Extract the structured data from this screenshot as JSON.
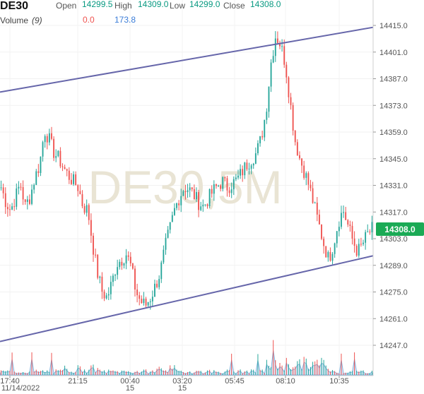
{
  "header": {
    "symbol": "DE30",
    "open_label": "Open",
    "open_value": "14299.5",
    "high_label": "High",
    "high_value": "14309.0",
    "low_label": "Low",
    "low_value": "14299.0",
    "close_label": "Close",
    "close_value": "14308.0",
    "volume_label": "Volume",
    "volume_period": "(9)",
    "volume_value": "0.0",
    "volume_ma_value": "173.8"
  },
  "watermark": "DE30,5M",
  "price_badge": "14308.0",
  "colors": {
    "up": "#26a69a",
    "down": "#ef5350",
    "header_value": "#089981",
    "channel": "#6666aa",
    "volume_ma": "#5b9bd5",
    "badge": "#1aaa55",
    "watermark": "#e9e4d4"
  },
  "chart_data": {
    "type": "candlestick",
    "title": "DE30",
    "timeframe": "5M",
    "y_ticks": [
      14415.0,
      14401.0,
      14387.0,
      14373.0,
      14359.0,
      14345.0,
      14331.0,
      14317.0,
      14303.0,
      14289.0,
      14275.0,
      14261.0,
      14247.0
    ],
    "ylim": [
      14237.0,
      14421.0
    ],
    "x_ticks": [
      {
        "time": "17:40",
        "date": "11/14/2022"
      },
      {
        "time": "21:15",
        "date": ""
      },
      {
        "time": "00:40",
        "date": "15"
      },
      {
        "time": "03:20",
        "date": "15"
      },
      {
        "time": "05:45",
        "date": ""
      },
      {
        "time": "08:10",
        "date": ""
      },
      {
        "time": "10:35",
        "date": ""
      }
    ],
    "close_path": [
      14330,
      14322,
      14318,
      14325,
      14332,
      14320,
      14325,
      14335,
      14342,
      14360,
      14355,
      14348,
      14345,
      14340,
      14336,
      14333,
      14330,
      14320,
      14318,
      14300,
      14285,
      14275,
      14272,
      14280,
      14290,
      14292,
      14295,
      14288,
      14275,
      14270,
      14268,
      14272,
      14278,
      14285,
      14298,
      14308,
      14318,
      14325,
      14330,
      14329,
      14326,
      14322,
      14320,
      14324,
      14328,
      14331,
      14333,
      14330,
      14332,
      14334,
      14338,
      14342,
      14345,
      14348,
      14356,
      14370,
      14395,
      14410,
      14405,
      14395,
      14375,
      14355,
      14345,
      14338,
      14330,
      14320,
      14310,
      14300,
      14292,
      14300,
      14312,
      14318,
      14310,
      14302,
      14296,
      14300,
      14305,
      14308
    ],
    "candles_count": 170,
    "channel_upper": [
      {
        "time": "17:40",
        "price": 14380.0
      },
      {
        "time": "end",
        "price": 14414.0
      }
    ],
    "channel_lower": [
      {
        "time": "17:40",
        "price": 14249.0
      },
      {
        "time": "end",
        "price": 14294.0
      }
    ],
    "volume_ma_last": 173.8,
    "last_price": 14308.0,
    "grid": true
  }
}
